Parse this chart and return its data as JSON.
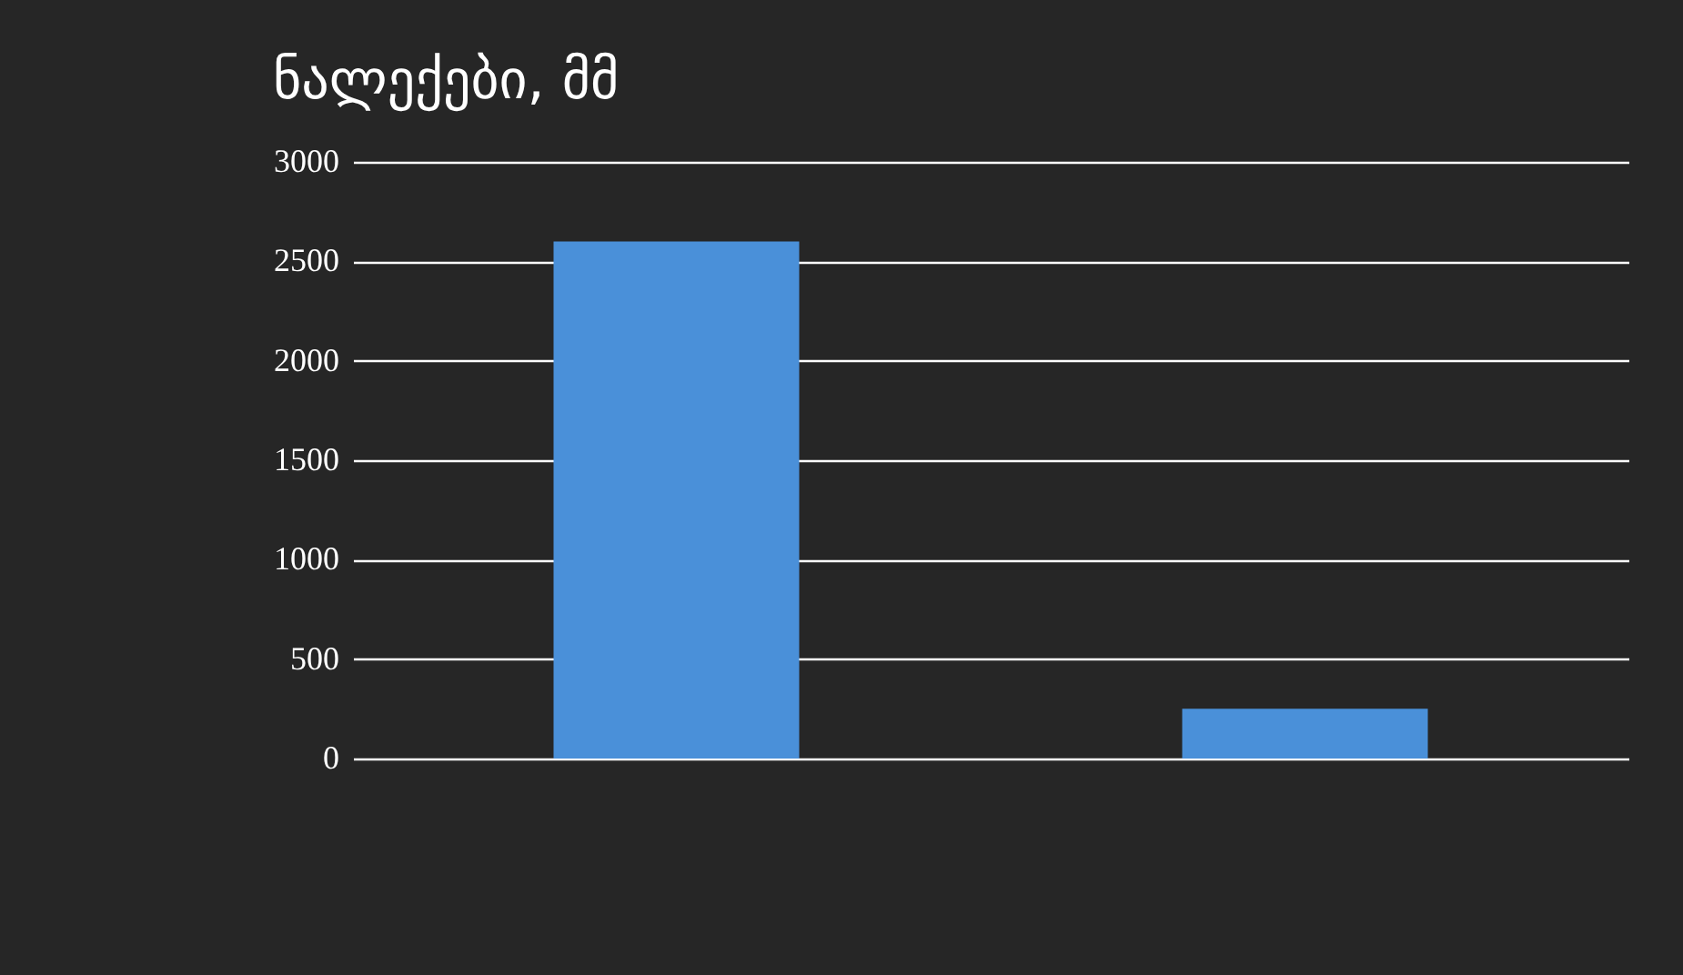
{
  "chart_data": {
    "type": "bar",
    "title": "ნალექები, მმ",
    "categories": [
      null,
      null
    ],
    "series": [
      {
        "color": "#4a90d9",
        "values": [
          2600,
          250
        ]
      }
    ],
    "ylim": [
      0,
      3000
    ],
    "yticks": [
      0,
      500,
      1000,
      1500,
      2000,
      2500,
      3000
    ],
    "grid": "y",
    "tick_labels": "y"
  }
}
